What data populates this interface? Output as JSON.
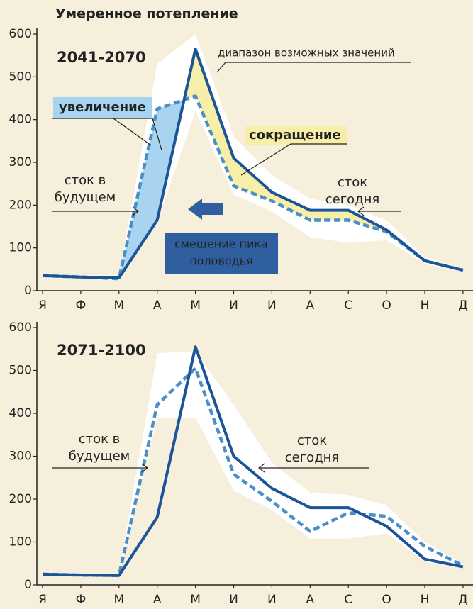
{
  "title": "Умеренное потепление",
  "chart_data": [
    {
      "type": "line",
      "period": "2041-2070",
      "categories": [
        "Я",
        "Ф",
        "М",
        "А",
        "М",
        "И",
        "И",
        "А",
        "С",
        "О",
        "Н",
        "Д"
      ],
      "ylim": [
        0,
        600
      ],
      "yticks": [
        0,
        100,
        200,
        300,
        400,
        500,
        600
      ],
      "series": [
        {
          "color": "#1b5597",
          "dash": false,
          "values": [
            35,
            32,
            30,
            165,
            565,
            310,
            230,
            188,
            188,
            142,
            70,
            48
          ]
        },
        {
          "color": "#4a8fc7",
          "dash": true,
          "values": [
            35,
            32,
            28,
            425,
            455,
            245,
            210,
            165,
            165,
            138,
            70,
            48
          ]
        }
      ],
      "band": {
        "color": "#ffffff",
        "upper": [
          38,
          36,
          36,
          530,
          600,
          360,
          270,
          215,
          200,
          165,
          78,
          52
        ],
        "lower": [
          30,
          28,
          24,
          160,
          420,
          225,
          185,
          125,
          112,
          118,
          63,
          44
        ]
      },
      "fill_difference": {
        "increase": "#a8d4ef",
        "decrease": "#f7efa8"
      },
      "labels": {
        "range": "диапазон возможных значений",
        "increase": "увеличение",
        "decrease": "сокращение",
        "future": [
          "сток в",
          "будущем"
        ],
        "today": [
          "сток",
          "сегодня"
        ],
        "shift": [
          "смещение пика",
          "половодья"
        ]
      }
    },
    {
      "type": "line",
      "period": "2071-2100",
      "categories": [
        "Я",
        "Ф",
        "М",
        "А",
        "М",
        "И",
        "И",
        "А",
        "С",
        "О",
        "Н",
        "Д"
      ],
      "ylim": [
        0,
        600
      ],
      "yticks": [
        0,
        100,
        200,
        300,
        400,
        500,
        600
      ],
      "series": [
        {
          "color": "#1b5597",
          "dash": false,
          "values": [
            25,
            23,
            22,
            158,
            555,
            300,
            225,
            180,
            180,
            137,
            60,
            42
          ]
        },
        {
          "color": "#4a8fc7",
          "dash": true,
          "values": [
            25,
            23,
            22,
            420,
            505,
            258,
            195,
            125,
            168,
            160,
            90,
            45
          ]
        }
      ],
      "band": {
        "color": "#ffffff",
        "upper": [
          28,
          27,
          27,
          540,
          545,
          420,
          285,
          215,
          210,
          185,
          100,
          50
        ],
        "lower": [
          21,
          20,
          20,
          390,
          390,
          220,
          175,
          108,
          108,
          120,
          55,
          38
        ]
      },
      "labels": {
        "future": [
          "сток в",
          "будущем"
        ],
        "today": [
          "сток",
          "сегодня"
        ]
      }
    }
  ]
}
